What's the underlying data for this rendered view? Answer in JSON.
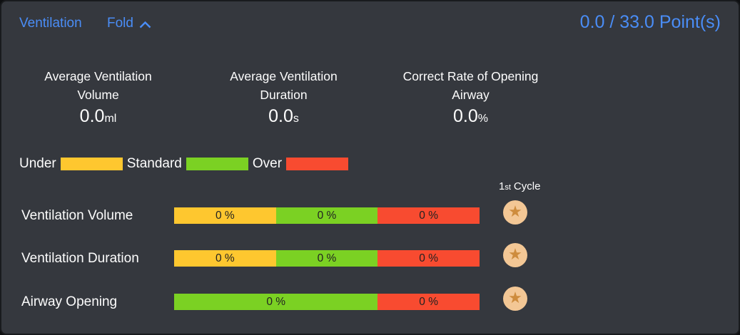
{
  "header": {
    "title": "Ventilation",
    "fold_label": "Fold",
    "points": "0.0 / 33.0 Point(s)"
  },
  "stats": [
    {
      "title_line1": "Average Ventilation",
      "title_line2": "Volume",
      "value": "0.0",
      "unit": "ml"
    },
    {
      "title_line1": "Average Ventilation",
      "title_line2": "Duration",
      "value": "0.0",
      "unit": "s"
    },
    {
      "title_line1": "Correct Rate of Opening",
      "title_line2": "Airway",
      "value": "0.0",
      "unit": "%"
    }
  ],
  "legend": [
    {
      "label": "Under",
      "color": "#fec72f"
    },
    {
      "label": "Standard",
      "color": "#7bd123"
    },
    {
      "label": "Over",
      "color": "#f84b30"
    }
  ],
  "cycle_header": {
    "number": "1",
    "ordinal": "st",
    "word": "Cycle"
  },
  "rows": [
    {
      "label": "Ventilation Volume",
      "segments": [
        {
          "category": "Under",
          "label": "0 %",
          "width_pct": 33.33
        },
        {
          "category": "Standard",
          "label": "0 %",
          "width_pct": 33.34
        },
        {
          "category": "Over",
          "label": "0 %",
          "width_pct": 33.33
        }
      ]
    },
    {
      "label": "Ventilation Duration",
      "segments": [
        {
          "category": "Under",
          "label": "0 %",
          "width_pct": 33.33
        },
        {
          "category": "Standard",
          "label": "0 %",
          "width_pct": 33.34
        },
        {
          "category": "Over",
          "label": "0 %",
          "width_pct": 33.33
        }
      ]
    },
    {
      "label": "Airway Opening",
      "segments": [
        {
          "category": "Standard",
          "label": "0 %",
          "width_pct": 66.67
        },
        {
          "category": "Over",
          "label": "0 %",
          "width_pct": 33.33
        }
      ]
    }
  ],
  "icons": {
    "star": "★",
    "chevron_up": "∧"
  },
  "colors": {
    "accent_blue": "#4a8df6",
    "under_yellow": "#fec72f",
    "standard_green": "#7bd123",
    "over_red": "#f84b30",
    "panel_bg": "#35383e",
    "star_badge_bg": "#f3c795",
    "star_glyph": "#ce8c3d"
  }
}
